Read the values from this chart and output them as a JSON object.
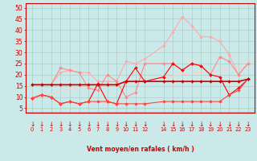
{
  "x_values": [
    0,
    1,
    2,
    3,
    4,
    5,
    6,
    7,
    8,
    9,
    10,
    11,
    12,
    14,
    15,
    16,
    17,
    18,
    19,
    20,
    21,
    22,
    23
  ],
  "x_ticks_labels": [
    "0",
    "1",
    "2",
    "3",
    "4",
    "5",
    "6",
    "7",
    "8",
    "9",
    "10",
    "11",
    "12",
    "14",
    "15",
    "16",
    "17",
    "18",
    "19",
    "20",
    "21",
    "22",
    "23"
  ],
  "ylim": [
    3,
    52
  ],
  "yticks": [
    5,
    10,
    15,
    20,
    25,
    30,
    35,
    40,
    45,
    50
  ],
  "xlabel": "Vent moyen/en rafales ( km/h )",
  "background_color": "#cce9e9",
  "grid_color": "#99ccbb",
  "lines": [
    {
      "name": "line1_lightest_pink",
      "color": "#ffaaaa",
      "linewidth": 0.8,
      "marker": "D",
      "markersize": 2.0,
      "zorder": 2,
      "values": [
        15.5,
        15.5,
        15.5,
        21,
        22,
        21,
        21,
        17,
        17,
        17,
        26,
        25,
        27,
        33,
        39,
        46,
        42,
        37,
        37,
        35,
        29,
        20,
        25
      ]
    },
    {
      "name": "line2_medium_pink",
      "color": "#ff8888",
      "linewidth": 0.8,
      "marker": "D",
      "markersize": 2.0,
      "zorder": 2,
      "values": [
        15.5,
        15.5,
        15.5,
        23,
        22,
        21,
        14,
        13,
        20,
        17,
        10,
        12,
        25,
        25,
        25,
        22,
        25,
        24,
        20,
        28,
        26,
        20,
        25
      ]
    },
    {
      "name": "line3_dark_red_thick",
      "color": "#cc0000",
      "linewidth": 1.2,
      "marker": "D",
      "markersize": 2.0,
      "zorder": 4,
      "values": [
        15.5,
        15.5,
        15.5,
        15.5,
        15.5,
        15.5,
        15.5,
        15.5,
        15.5,
        15.5,
        17,
        17,
        17,
        17,
        17,
        17,
        17,
        17,
        17,
        17,
        17,
        17,
        18
      ]
    },
    {
      "name": "line4_bright_red",
      "color": "#ff0000",
      "linewidth": 0.8,
      "marker": "D",
      "markersize": 2.0,
      "zorder": 3,
      "values": [
        9.5,
        11,
        10,
        7,
        8,
        7,
        8,
        16,
        8,
        7,
        17,
        23,
        17,
        19,
        25,
        22,
        25,
        24,
        20,
        19,
        11,
        14,
        18
      ]
    },
    {
      "name": "line5_lightest_rising",
      "color": "#ffcccc",
      "linewidth": 0.8,
      "marker": null,
      "markersize": 0,
      "zorder": 1,
      "values": [
        9.5,
        10.5,
        11.5,
        12.5,
        13.5,
        14.0,
        14.5,
        15.0,
        15.5,
        16.0,
        16.5,
        17.0,
        17.5,
        18.5,
        19.5,
        20.0,
        20.5,
        21.0,
        21.5,
        22.0,
        22.5,
        23.0,
        23.5
      ]
    },
    {
      "name": "line6_bottom_red",
      "color": "#ff4444",
      "linewidth": 0.8,
      "marker": "D",
      "markersize": 2.0,
      "zorder": 3,
      "values": [
        9.5,
        11,
        10,
        7,
        8,
        7,
        8,
        8,
        8,
        7,
        7,
        7,
        7,
        8,
        8,
        8,
        8,
        8,
        8,
        8,
        11,
        13,
        18
      ]
    }
  ],
  "arrow_color": "#cc0000",
  "arrow_fontsize": 5.5,
  "xlabel_fontsize": 5.5,
  "ytick_fontsize": 5.5,
  "xtick_fontsize": 4.8
}
